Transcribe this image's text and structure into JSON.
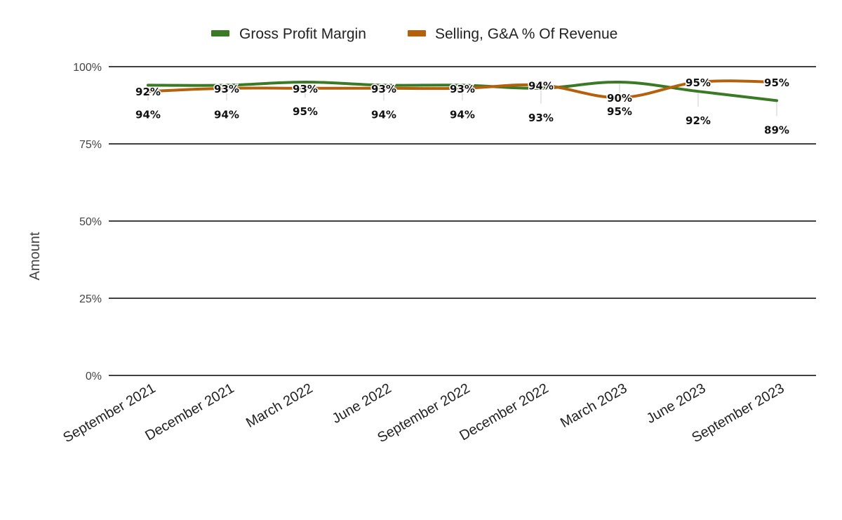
{
  "chart_data": {
    "type": "line",
    "title": "",
    "xlabel": "",
    "ylabel": "Amount",
    "ylim": [
      0,
      100
    ],
    "y_ticks": [
      "0%",
      "25%",
      "50%",
      "75%",
      "100%"
    ],
    "y_tick_values": [
      0,
      25,
      50,
      75,
      100
    ],
    "grid": true,
    "legend_position": "top",
    "categories": [
      "September 2021",
      "December 2021",
      "March 2022",
      "June 2022",
      "September 2022",
      "December 2022",
      "March 2023",
      "June 2023",
      "September 2023"
    ],
    "series": [
      {
        "name": "Gross Profit Margin",
        "color": "#3b7a24",
        "values": [
          94,
          94,
          95,
          94,
          94,
          93,
          95,
          92,
          89
        ],
        "labels": [
          "94%",
          "94%",
          "95%",
          "94%",
          "94%",
          "93%",
          "95%",
          "92%",
          "89%"
        ]
      },
      {
        "name": "Selling, G&A % Of Revenue",
        "color": "#b5600d",
        "values": [
          92,
          93,
          93,
          93,
          93,
          94,
          90,
          95,
          95
        ],
        "labels": [
          "92%",
          "93%",
          "93%",
          "93%",
          "93%",
          "94%",
          "90%",
          "95%",
          "95%"
        ]
      }
    ]
  }
}
